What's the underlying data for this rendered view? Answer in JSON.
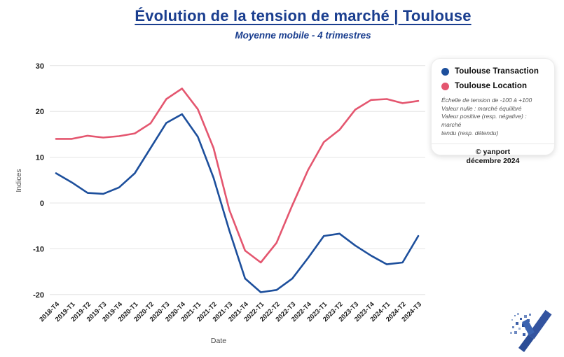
{
  "header": {
    "title": "Évolution de la tension de marché | Toulouse",
    "subtitle": "Moyenne mobile - 4 trimestres"
  },
  "chart_data": {
    "type": "line",
    "title": "Évolution de la tension de marché | Toulouse",
    "subtitle": "Moyenne mobile - 4 trimestres",
    "xlabel": "Date",
    "ylabel": "Indices",
    "ylim": [
      -20,
      30
    ],
    "yticks": [
      30,
      20,
      10,
      0,
      -10,
      -20
    ],
    "grid": true,
    "legend_position": "top-right",
    "categories": [
      "2018-T4",
      "2019-T1",
      "2019-T2",
      "2019-T3",
      "2019-T4",
      "2020-T1",
      "2020-T2",
      "2020-T3",
      "2020-T4",
      "2021-T1",
      "2021-T2",
      "2021-T3",
      "2021-T4",
      "2022-T1",
      "2022-T2",
      "2022-T3",
      "2022-T4",
      "2023-T1",
      "2023-T2",
      "2023-T3",
      "2023-T4",
      "2024-T1",
      "2024-T2",
      "2024-T3"
    ],
    "series": [
      {
        "name": "Toulouse Transaction",
        "color": "#1d4f9c",
        "values": [
          6.5,
          4.5,
          2.2,
          2.0,
          3.4,
          6.5,
          12.0,
          17.5,
          19.4,
          14.5,
          5.5,
          -6.0,
          -16.5,
          -19.5,
          -19.0,
          -16.5,
          -12.0,
          -7.2,
          -6.7,
          -9.3,
          -11.5,
          -13.4,
          -13.0,
          -7.2
        ]
      },
      {
        "name": "Toulouse Location",
        "color": "#e4566f",
        "values": [
          14.0,
          14.0,
          14.7,
          14.3,
          14.6,
          15.2,
          17.4,
          22.7,
          25.0,
          20.5,
          12.0,
          -1.5,
          -10.4,
          -13.0,
          -8.7,
          -0.5,
          7.2,
          13.3,
          16.0,
          20.4,
          22.5,
          22.7,
          21.8,
          22.3
        ]
      }
    ]
  },
  "legend": {
    "items": [
      {
        "label": "Toulouse Transaction",
        "color": "#1d4f9c"
      },
      {
        "label": "Toulouse Location",
        "color": "#e4566f"
      }
    ],
    "note": "Échelle de tension de -100 à +100\nValeur nulle : marché équilibré\nValeur positive (resp. négative) : marché\ntendu (resp. détendu)",
    "credit_line1": "© yanport",
    "credit_line2": "décembre 2024"
  },
  "logo": {
    "icon": "yanport-logo"
  }
}
